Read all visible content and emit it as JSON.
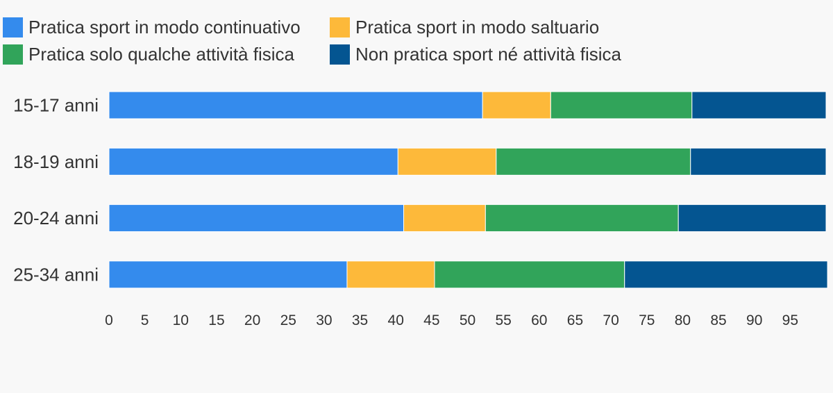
{
  "chart_data": {
    "type": "bar",
    "orientation": "horizontal",
    "stacked": true,
    "categories": [
      "15-17 anni",
      "18-19 anni",
      "20-24 anni",
      "25-34 anni"
    ],
    "series": [
      {
        "name": "Pratica sport in modo continuativo",
        "color": "#348BED",
        "values": [
          52.1,
          40.3,
          41.1,
          33.2
        ]
      },
      {
        "name": "Pratica sport in modo saltuario",
        "color": "#FDB93A",
        "values": [
          9.5,
          13.7,
          11.4,
          12.2
        ]
      },
      {
        "name": "Pratica solo qualche attività fisica",
        "color": "#31A45A",
        "values": [
          19.7,
          27.1,
          26.9,
          26.5
        ]
      },
      {
        "name": "Non pratica sport né attività fisica",
        "color": "#045591",
        "values": [
          18.7,
          18.9,
          20.6,
          28.3
        ]
      }
    ],
    "x_ticks": [
      "0",
      "5",
      "10",
      "15",
      "20",
      "25",
      "30",
      "35",
      "40",
      "45",
      "50",
      "55",
      "60",
      "65",
      "70",
      "75",
      "80",
      "85",
      "90",
      "95"
    ],
    "xlim": [
      0,
      100
    ],
    "grid": false,
    "legend_position": "top-left",
    "title": "",
    "xlabel": "",
    "ylabel": ""
  }
}
